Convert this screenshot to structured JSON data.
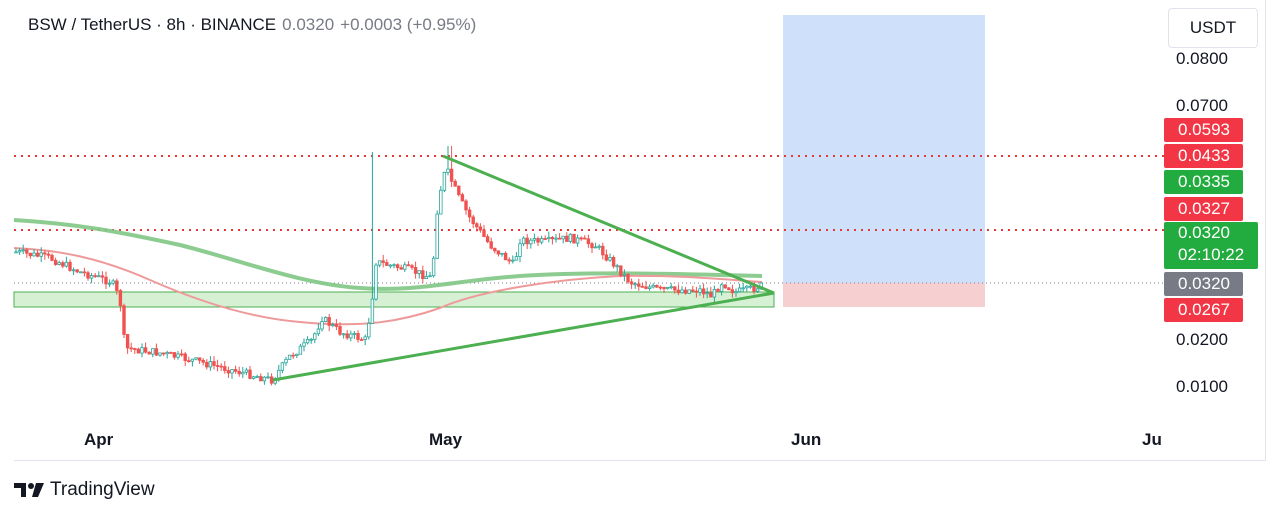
{
  "header": {
    "symbol": "BSW / TetherUS · 8h · BINANCE",
    "price": "0.0320",
    "change": "+0.0003 (+0.95%)"
  },
  "unit_button": "USDT",
  "y_axis_ticks": [
    "0.0800",
    "0.0700",
    "0.0200",
    "0.0100"
  ],
  "price_tags": {
    "t1": "0.0593",
    "t2": "0.0433",
    "t3": "0.0335",
    "t4": "0.0327",
    "t5": "0.0320",
    "t6": "0.0267"
  },
  "live_price": {
    "price": "0.0320",
    "countdown": "02:10:22"
  },
  "x_axis_labels": [
    "Apr",
    "May",
    "Jun",
    "Ju"
  ],
  "footer": {
    "brand": "TradingView",
    "logo_icon": "tradingview-logo-icon"
  },
  "colors": {
    "tag_red": "#f23645",
    "tag_green": "#22ab3f",
    "tag_gray": "#787b86",
    "candle_up": "#26a69a",
    "triangle": "#4caf50",
    "ema_slow": "#81c784",
    "ema_fast": "#ef9a9a",
    "target_zone": "#cfe0fb",
    "stop_zone": "#f6d0d0",
    "support_zone": "#d6f0d4",
    "dotted_level": "#e53935"
  }
}
